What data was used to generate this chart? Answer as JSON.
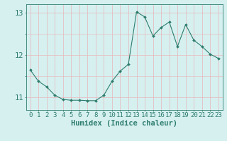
{
  "x": [
    0,
    1,
    2,
    3,
    4,
    5,
    6,
    7,
    8,
    9,
    10,
    11,
    12,
    13,
    14,
    15,
    16,
    17,
    18,
    19,
    20,
    21,
    22,
    23
  ],
  "y": [
    11.65,
    11.38,
    11.25,
    11.05,
    10.95,
    10.93,
    10.93,
    10.92,
    10.92,
    11.05,
    11.38,
    11.62,
    11.78,
    13.02,
    12.9,
    12.45,
    12.65,
    12.78,
    12.2,
    12.72,
    12.35,
    12.2,
    12.02,
    11.92
  ],
  "line_color": "#2e7d6e",
  "marker": "D",
  "marker_size": 2.0,
  "bg_color": "#d6f0f0",
  "grid_color": "#e8b4b8",
  "xlabel": "Humidex (Indice chaleur)",
  "ylim": [
    10.7,
    13.2
  ],
  "yticks": [
    11,
    12,
    13
  ],
  "xticks": [
    0,
    1,
    2,
    3,
    4,
    5,
    6,
    7,
    8,
    9,
    10,
    11,
    12,
    13,
    14,
    15,
    16,
    17,
    18,
    19,
    20,
    21,
    22,
    23
  ],
  "tick_color": "#2e7d6e",
  "label_color": "#2e7d6e",
  "font_size": 6.5
}
